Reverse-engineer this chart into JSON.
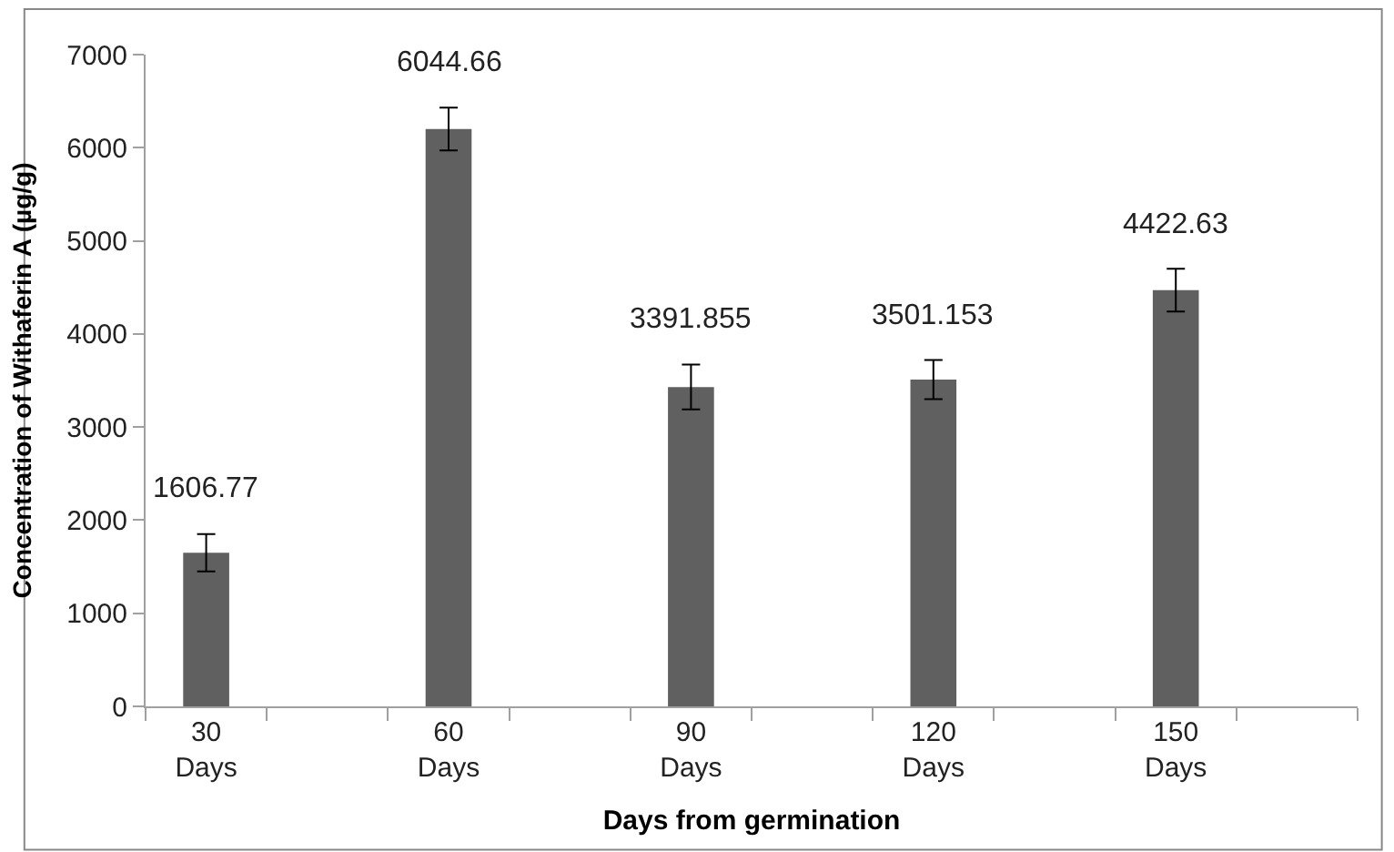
{
  "chart_data": {
    "type": "bar",
    "xlabel": "Days from germination",
    "ylabel": "Concentration of Withaferin A (µg/g)",
    "categories": [
      "30 Days",
      null,
      "60 Days",
      null,
      "90 Days",
      null,
      "120 Days",
      null,
      "150 Days",
      null
    ],
    "values": [
      1650,
      null,
      6200,
      null,
      3430,
      null,
      3510,
      null,
      4470,
      null
    ],
    "errors": [
      200,
      null,
      230,
      null,
      240,
      null,
      210,
      null,
      230,
      null
    ],
    "annotations": [
      "1606.77",
      "6044.66",
      "3391.855",
      "3501.153",
      "4422.63"
    ],
    "color": "#606060",
    "ylim": [
      0,
      7000
    ],
    "yticks": [
      0,
      1000,
      2000,
      3000,
      4000,
      5000,
      6000,
      7000
    ],
    "grid": false,
    "legend": false
  }
}
